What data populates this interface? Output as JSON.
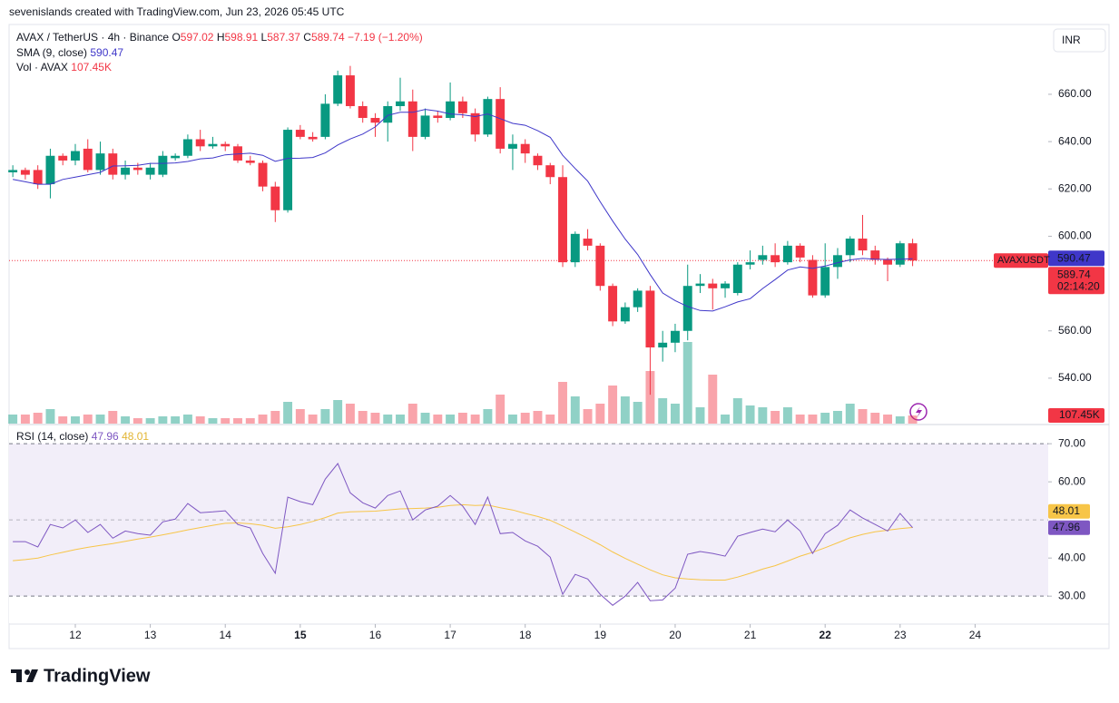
{
  "header": {
    "attribution": "sevenislands created with TradingView.com, Jun 23, 2026 05:45 UTC",
    "logo": "TradingView",
    "currency": "INR"
  },
  "chart_data": [
    {
      "type": "candlestick",
      "title": "AVAX / TetherUS · 4h · Binance",
      "symbol_tag": "AVAXUSDT",
      "countdown": "02:14:20",
      "ohlc_letters": [
        "O",
        "H",
        "L",
        "C"
      ],
      "change": {
        "value": -7.19,
        "label": "−7.19"
      },
      "change_percent": {
        "value": -1.2,
        "label": "(−1.20%)"
      },
      "up_color": "#089981",
      "down_color": "#f23645",
      "open": [
        627,
        628,
        628,
        622,
        634,
        632,
        637,
        628,
        635,
        626,
        629,
        626,
        626,
        633,
        634,
        641,
        638,
        639,
        638,
        632,
        631,
        621,
        611,
        645,
        642,
        642,
        656,
        668,
        655,
        650,
        648,
        655,
        657,
        642,
        651,
        650,
        657,
        652,
        643,
        658,
        637,
        639,
        634,
        630,
        625,
        589,
        599,
        596,
        579,
        564,
        570,
        577,
        553,
        555,
        560,
        579,
        580,
        578,
        576,
        588,
        590,
        592,
        589,
        596,
        590,
        575,
        587,
        592,
        599,
        594,
        590,
        588,
        597.02
      ],
      "high": [
        630,
        629,
        630,
        637,
        635,
        639,
        641,
        640,
        637,
        632,
        631,
        631,
        636,
        635,
        643,
        645,
        642,
        640,
        639,
        634,
        632,
        623,
        646,
        647,
        644,
        660,
        670,
        672,
        657,
        652,
        657,
        667,
        662,
        654,
        653,
        665,
        659,
        654,
        659,
        663,
        643,
        641,
        635,
        631,
        630,
        602,
        603,
        597,
        580,
        572,
        578,
        579,
        560,
        563,
        588,
        584,
        582,
        581,
        589,
        594,
        596,
        597,
        598,
        597,
        592,
        597,
        595,
        600,
        609,
        596,
        591,
        598,
        598.91
      ],
      "low": [
        625,
        624,
        620,
        616,
        630,
        630,
        627,
        626,
        624,
        624,
        626,
        624,
        625,
        632,
        633,
        636,
        637,
        636,
        631,
        630,
        619,
        606,
        610,
        641,
        640,
        641,
        655,
        654,
        648,
        642,
        640,
        653,
        636,
        641,
        648,
        649,
        650,
        640,
        642,
        635,
        628,
        631,
        628,
        622,
        587,
        587,
        594,
        577,
        562,
        563,
        568,
        533,
        547,
        551,
        556,
        576,
        569,
        574,
        575,
        586,
        588,
        587,
        588,
        589,
        574,
        574,
        582,
        589,
        592,
        588,
        581,
        587,
        587.37
      ],
      "close": [
        628,
        626,
        622,
        634,
        632,
        636,
        628,
        635,
        626,
        629,
        628,
        629,
        634,
        634,
        641,
        638,
        639,
        638,
        632,
        631,
        621,
        611,
        645,
        642,
        641,
        656,
        668,
        655,
        650,
        648,
        655,
        657,
        642,
        651,
        650,
        657,
        652,
        643,
        658,
        637,
        639,
        635,
        630,
        625,
        589,
        601,
        596,
        579,
        564,
        570,
        577,
        553,
        555,
        560,
        579,
        580,
        578,
        580,
        588,
        589,
        592,
        589,
        596,
        591,
        575,
        587,
        592,
        599,
        594,
        590,
        588,
        597.02,
        589.74
      ],
      "ylim": [
        520.8,
        689.5
      ],
      "yticks": [
        {
          "value": 540,
          "label": "540.00"
        },
        {
          "value": 560,
          "label": "560.00"
        },
        {
          "value": 580,
          "label": "580.00"
        },
        {
          "value": 600,
          "label": "600.00"
        },
        {
          "value": 620,
          "label": "620.00"
        },
        {
          "value": 640,
          "label": "640.00"
        },
        {
          "value": 660,
          "label": "660.00"
        }
      ],
      "xlim": [
        -0.3,
        82.85
      ],
      "xticks": [
        {
          "value": 5,
          "label": "12"
        },
        {
          "value": 11,
          "label": "13"
        },
        {
          "value": 17,
          "label": "14"
        },
        {
          "value": 23,
          "label": "15"
        },
        {
          "value": 29,
          "label": "16"
        },
        {
          "value": 35,
          "label": "17"
        },
        {
          "value": 41,
          "label": "18"
        },
        {
          "value": 47,
          "label": "19"
        },
        {
          "value": 53,
          "label": "20"
        },
        {
          "value": 59,
          "label": "21"
        },
        {
          "value": 65,
          "label": "22"
        },
        {
          "value": 71,
          "label": "23"
        },
        {
          "value": 77,
          "label": "24"
        }
      ],
      "series": [
        {
          "name": "SMA (9, close)",
          "color": "#3f37c9",
          "values": [
            624,
            623,
            622,
            622,
            624,
            625,
            626,
            627,
            629.7,
            629.8,
            630.0,
            630.8,
            630.8,
            631.0,
            631.6,
            632.7,
            633.1,
            634.4,
            634.8,
            635.1,
            634.2,
            631.7,
            632.9,
            633.0,
            633.3,
            635.2,
            638.6,
            641.1,
            643.2,
            646.2,
            651.1,
            652.4,
            652.4,
            653.6,
            652.9,
            651.7,
            651.3,
            650.6,
            651.7,
            649.7,
            647.7,
            646.9,
            644.6,
            641.8,
            634.2,
            628.6,
            623.3,
            614.6,
            606.4,
            598.8,
            592.3,
            583.8,
            576.0,
            572.8,
            570.3,
            568.6,
            568.4,
            570.2,
            572.2,
            573.6,
            577.9,
            581.7,
            585.7,
            587.0,
            586.4,
            587.4,
            588.8,
            590.0,
            590.6,
            590.3,
            590.2,
            590.3,
            590.47
          ]
        }
      ],
      "volume": {
        "name": "Vol · AVAX",
        "last_label": "107.45K",
        "values": [
          120000,
          120000,
          144000,
          192000,
          96000,
          96000,
          120000,
          120000,
          168000,
          96000,
          72000,
          72000,
          96000,
          96000,
          120000,
          96000,
          72000,
          72000,
          72000,
          72000,
          120000,
          168000,
          288000,
          192000,
          120000,
          192000,
          312000,
          264000,
          168000,
          144000,
          120000,
          120000,
          264000,
          144000,
          120000,
          120000,
          144000,
          120000,
          192000,
          384000,
          120000,
          144000,
          168000,
          120000,
          552000,
          360000,
          192000,
          264000,
          504000,
          360000,
          288000,
          696000,
          336000,
          264000,
          1080000,
          216000,
          648000,
          120000,
          336000,
          240000,
          216000,
          168000,
          216000,
          120000,
          120000,
          144000,
          168000,
          264000,
          192000,
          144000,
          120000,
          96000,
          107450
        ]
      }
    },
    {
      "type": "line",
      "title": "RSI (14, close)",
      "ylim": [
        22.9,
        74.8
      ],
      "yticks": [
        {
          "value": 30,
          "label": "30.00"
        },
        {
          "value": 40,
          "label": "40.00"
        },
        {
          "value": 60,
          "label": "60.00"
        },
        {
          "value": 70,
          "label": "70.00"
        }
      ],
      "band": [
        30,
        70
      ],
      "midline": 50,
      "series": [
        {
          "color": "#7e57c2",
          "values": [
            44.3,
            44.3,
            42.9,
            48.8,
            47.9,
            50,
            46.7,
            48.8,
            45.2,
            47.1,
            46.4,
            46,
            49.5,
            50.2,
            54.3,
            51.9,
            52.1,
            52.4,
            48.8,
            47.9,
            41.2,
            36,
            56,
            54.8,
            54,
            60.7,
            64.8,
            57.1,
            54.5,
            53.1,
            56.4,
            57.6,
            50,
            52.6,
            53.6,
            56.4,
            53.6,
            48.8,
            56,
            46.4,
            46.7,
            44.5,
            43.1,
            40.2,
            30.5,
            35.7,
            34.5,
            30.5,
            27.6,
            30,
            33.6,
            28.8,
            29,
            32.1,
            41,
            41.7,
            41.2,
            40.5,
            45.7,
            46.7,
            47.6,
            46.9,
            50,
            47.1,
            41.2,
            46.4,
            48.6,
            52.6,
            50.5,
            48.8,
            47.1,
            51.7,
            47.96
          ]
        },
        {
          "color": "#f7c548",
          "values": [
            39.3,
            39.6,
            40,
            40.8,
            41.5,
            42.2,
            42.8,
            43.3,
            43.8,
            44.4,
            45,
            45.5,
            46.1,
            46.7,
            47.4,
            48,
            48.6,
            49.1,
            49.2,
            49.0,
            48.6,
            47.8,
            48.2,
            48.8,
            49.6,
            50.6,
            51.8,
            52.1,
            52.2,
            52.3,
            52.6,
            52.9,
            53.0,
            53.1,
            53.3,
            53.8,
            54.0,
            53.8,
            53.9,
            53.2,
            52.6,
            51.7,
            50.9,
            49.9,
            48.4,
            46.8,
            45.2,
            43.5,
            41.6,
            39.9,
            38.4,
            36.9,
            35.6,
            34.8,
            34.5,
            34.3,
            34.2,
            34.2,
            35.0,
            36.0,
            37.1,
            38.0,
            39.2,
            40.5,
            41.5,
            42.7,
            44.0,
            45.3,
            46.2,
            46.9,
            47.3,
            47.7,
            48.01
          ]
        }
      ]
    }
  ]
}
